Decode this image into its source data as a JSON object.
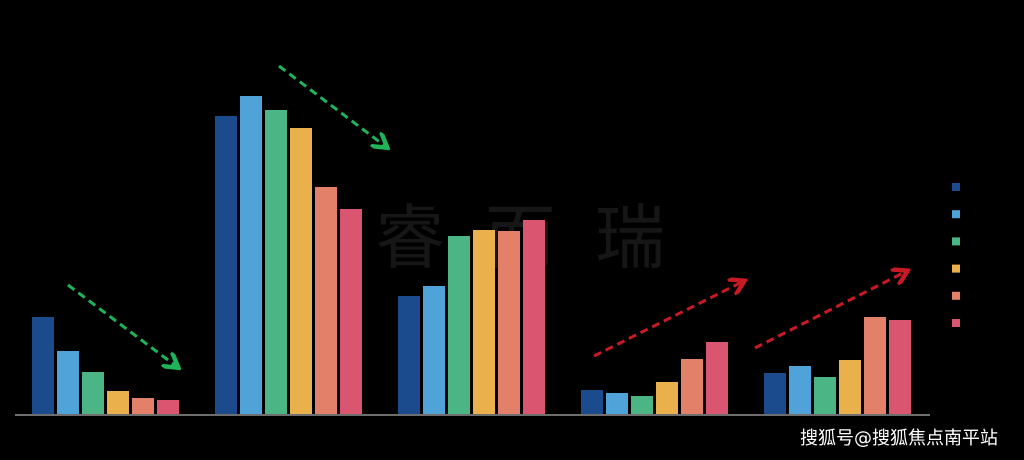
{
  "chart_data": {
    "type": "bar",
    "title": "",
    "xlabel": "",
    "ylabel": "",
    "ylim": [
      0,
      330
    ],
    "grid": false,
    "legend": "right",
    "categories": [
      "",
      "",
      "",
      "",
      ""
    ],
    "series": [
      {
        "color": "#1b4b8c",
        "values": [
          97,
          298,
          118,
          24,
          41
        ]
      },
      {
        "color": "#4fa3d8",
        "values": [
          63,
          318,
          128,
          21,
          48
        ]
      },
      {
        "color": "#4bb586",
        "values": [
          42,
          304,
          178,
          18,
          37
        ]
      },
      {
        "color": "#eab04b",
        "values": [
          23,
          286,
          184,
          32,
          54
        ]
      },
      {
        "color": "#e3806a",
        "values": [
          16,
          227,
          183,
          55,
          97
        ]
      },
      {
        "color": "#da5570",
        "values": [
          14,
          205,
          194,
          72,
          94
        ]
      }
    ],
    "annotations": [
      {
        "kind": "trend-arrow",
        "direction": "down",
        "color": "#1fb35a",
        "group": 0
      },
      {
        "kind": "trend-arrow",
        "direction": "down",
        "color": "#1fb35a",
        "group": 1
      },
      {
        "kind": "trend-arrow",
        "direction": "up",
        "color": "#c81a24",
        "group": 3
      },
      {
        "kind": "trend-arrow",
        "direction": "up",
        "color": "#c81a24",
        "group": 4
      }
    ]
  },
  "watermark": "睿而瑞",
  "credit": "搜狐号@搜狐焦点南平站"
}
